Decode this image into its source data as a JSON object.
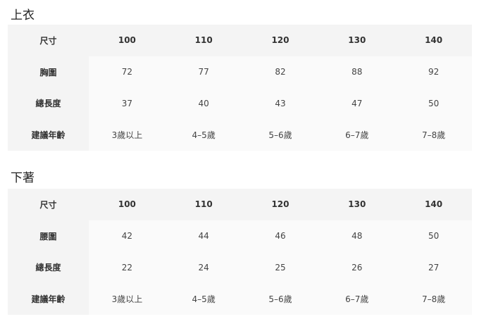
{
  "tops": {
    "title": "上衣",
    "rows": [
      {
        "label": "尺寸",
        "values": [
          "100",
          "110",
          "120",
          "130",
          "140"
        ]
      },
      {
        "label": "胸圍",
        "values": [
          "72",
          "77",
          "82",
          "88",
          "92"
        ]
      },
      {
        "label": "總長度",
        "values": [
          "37",
          "40",
          "43",
          "47",
          "50"
        ]
      },
      {
        "label": "建議年齡",
        "values": [
          "3歲以上",
          "4–5歲",
          "5–6歲",
          "6–7歲",
          "7–8歲"
        ]
      }
    ]
  },
  "bottoms": {
    "title": "下著",
    "rows": [
      {
        "label": "尺寸",
        "values": [
          "100",
          "110",
          "120",
          "130",
          "140"
        ]
      },
      {
        "label": "腰圍",
        "values": [
          "42",
          "44",
          "46",
          "48",
          "50"
        ]
      },
      {
        "label": "總長度",
        "values": [
          "22",
          "24",
          "25",
          "26",
          "27"
        ]
      },
      {
        "label": "建議年齡",
        "values": [
          "3歲以上",
          "4–5歲",
          "5–6歲",
          "6–7歲",
          "7–8歲"
        ]
      }
    ]
  }
}
